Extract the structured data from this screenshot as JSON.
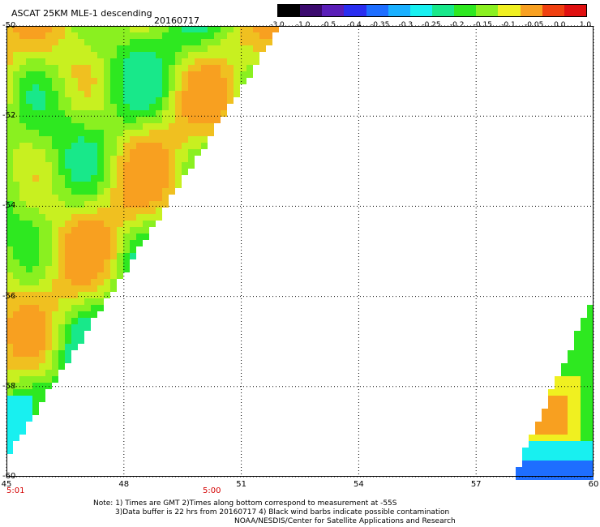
{
  "header": {
    "title": "ASCAT 25KM MLE-1 descending",
    "date": "20160717"
  },
  "color_scale": {
    "labels": [
      "-3.0",
      "-1.0",
      "-0.5",
      "-0.4",
      "-0.35",
      "-0.3",
      "-0.25",
      "-0.2",
      "-0.15",
      "-0.1",
      "-0.05",
      "0.0",
      "1.0"
    ],
    "colors": [
      "#000000",
      "#3b0a6e",
      "#5a1eb8",
      "#2a2ef0",
      "#1e6eff",
      "#1ab0ff",
      "#18f0f0",
      "#18e88a",
      "#2ee820",
      "#8af020",
      "#f0f020",
      "#f8a020",
      "#f04010",
      "#e01010"
    ]
  },
  "map": {
    "lat_labels": [
      "-50",
      "-52",
      "-54",
      "-56",
      "-58",
      "-60"
    ],
    "lon_labels": [
      "45",
      "48",
      "51",
      "54",
      "57",
      "60"
    ],
    "time_labels": [
      "5:01",
      "5:00"
    ],
    "lat_range": [
      -60,
      -50
    ],
    "lon_range": [
      45,
      60
    ]
  },
  "footer": {
    "note_line1": "Note: 1) Times are GMT 2)Times along bottom correspond to measurement at -55S",
    "note_line2": "3)Data buffer is 22 hrs from 20160717 4) Black wind barbs indicate possible contamination",
    "note_line3": "NOAA/NESDIS/Center for Satellite Applications and Research"
  }
}
